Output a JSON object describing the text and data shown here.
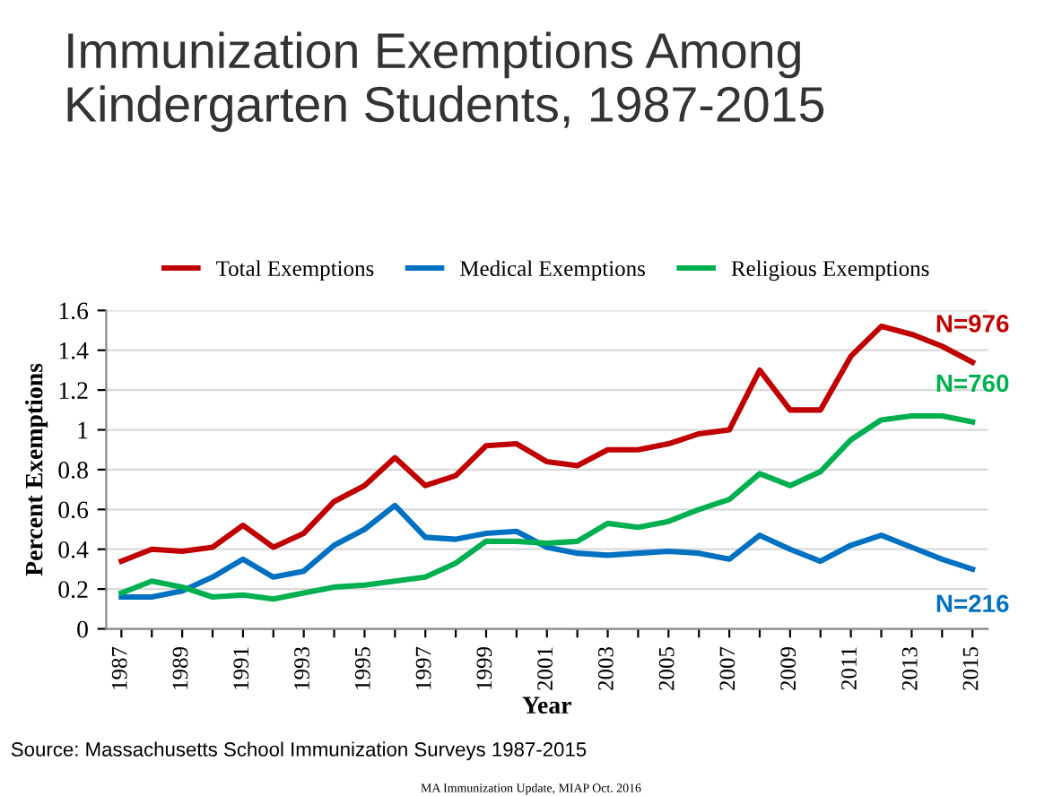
{
  "chart_data": {
    "type": "line",
    "title": "Immunization Exemptions Among\nKindergarten Students, 1987-2015",
    "xlabel": "Year",
    "ylabel": "Percent Exemptions",
    "categories": [
      "1987",
      null,
      "1989",
      null,
      "1991",
      null,
      "1993",
      null,
      "1995",
      null,
      "1997",
      null,
      "1999",
      null,
      "2001",
      null,
      "2003",
      null,
      "2005",
      null,
      "2007",
      null,
      "2009",
      null,
      "2011",
      null,
      "2013",
      null,
      "2015"
    ],
    "series": [
      {
        "name": "Total Exemptions",
        "color": "#c00000",
        "values": [
          0.34,
          0.4,
          0.39,
          0.41,
          0.52,
          0.41,
          0.48,
          0.64,
          0.72,
          0.86,
          0.72,
          0.77,
          0.92,
          0.93,
          0.84,
          0.82,
          0.9,
          0.9,
          0.93,
          0.98,
          1.0,
          1.3,
          1.1,
          1.1,
          1.37,
          1.52,
          1.48,
          1.42,
          1.34
        ]
      },
      {
        "name": "Medical Exemptions",
        "color": "#0070c0",
        "values": [
          0.16,
          0.16,
          0.19,
          0.26,
          0.35,
          0.26,
          0.29,
          0.42,
          0.5,
          0.62,
          0.46,
          0.45,
          0.48,
          0.49,
          0.41,
          0.38,
          0.37,
          0.38,
          0.39,
          0.38,
          0.35,
          0.47,
          0.4,
          0.34,
          0.42,
          0.47,
          0.41,
          0.35,
          0.3
        ]
      },
      {
        "name": "Religious Exemptions",
        "color": "#00b050",
        "values": [
          0.18,
          0.24,
          0.21,
          0.16,
          0.17,
          0.15,
          0.18,
          0.21,
          0.22,
          0.24,
          0.26,
          0.33,
          0.44,
          0.44,
          0.43,
          0.44,
          0.53,
          0.51,
          0.54,
          0.6,
          0.65,
          0.78,
          0.72,
          0.79,
          0.95,
          1.05,
          1.07,
          1.07,
          1.04
        ]
      }
    ],
    "ylim": [
      0,
      1.6
    ],
    "yticks": [
      0,
      {
        "value": 0.2,
        "label": "0.2"
      },
      {
        "value": 0.4,
        "label": "0.4"
      },
      {
        "value": 0.6,
        "label": "0.6"
      },
      {
        "value": 0.8,
        "label": "0.8"
      },
      1,
      {
        "value": 1.2,
        "label": "1.2"
      },
      {
        "value": 1.4,
        "label": "1.4"
      },
      {
        "value": 1.6,
        "label": "1.6"
      }
    ],
    "grid": "y",
    "legend": "top",
    "marker": "none",
    "line_style": "solid",
    "annotations": [
      {
        "text": "N=976",
        "x": "2015",
        "y": 1.34
      },
      {
        "text": "N=760",
        "x": "2015",
        "y": 1.04
      },
      {
        "text": "N=216",
        "x": "2015",
        "y": 0.3
      },
      "Source: Massachusetts School Immunization Surveys 1987-2015",
      "MA Immunization Update, MIAP Oct. 2016"
    ]
  }
}
